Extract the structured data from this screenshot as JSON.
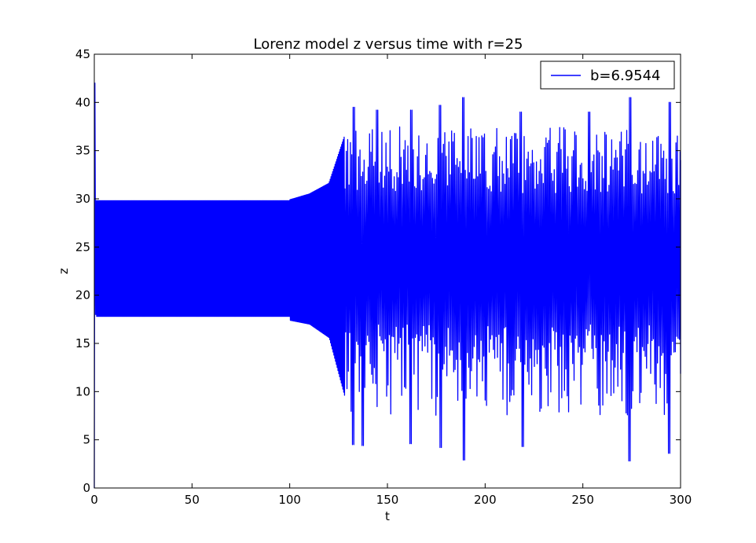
{
  "chart_data": {
    "type": "line",
    "title": "Lorenz model z versus time with r=25",
    "xlabel": "t",
    "ylabel": "z",
    "xlim": [
      0,
      300
    ],
    "ylim": [
      0,
      45
    ],
    "xticks": [
      0,
      50,
      100,
      150,
      200,
      250,
      300
    ],
    "yticks": [
      0,
      5,
      10,
      15,
      20,
      25,
      30,
      35,
      40,
      45
    ],
    "grid": false,
    "legend": {
      "position": "top-right",
      "entries": [
        "b=6.9544"
      ]
    },
    "series": [
      {
        "name": "b=6.9544",
        "color": "#0000ff",
        "description_points": {
          "transient": [
            [
              0,
              0
            ],
            [
              0.3,
              42
            ],
            [
              0.7,
              18
            ]
          ],
          "regular_band": {
            "t_range": [
              1,
              125
            ],
            "z_min": 17.8,
            "z_max": 29.8
          },
          "envelope_growth": [
            [
              100,
              29.9,
              17.4
            ],
            [
              110,
              30.5,
              17.0
            ],
            [
              120,
              31.6,
              15.6
            ],
            [
              128,
              36.5,
              9.5
            ]
          ],
          "chaotic_peaks": [
            [
              132.5,
              39.5
            ],
            [
              145,
              39.2
            ],
            [
              162,
              39.2
            ],
            [
              177,
              39.7
            ],
            [
              189,
              40.5
            ],
            [
              218,
              39
            ],
            [
              253,
              39
            ],
            [
              274,
              40.5
            ],
            [
              294.5,
              40
            ]
          ],
          "chaotic_troughs": [
            [
              132.5,
              4.5
            ],
            [
              137,
              4.4
            ],
            [
              162,
              4.6
            ],
            [
              177,
              4.2
            ],
            [
              189,
              2.9
            ],
            [
              219,
              4.3
            ],
            [
              274,
              2.8
            ],
            [
              294,
              3.6
            ]
          ],
          "chaotic_band": {
            "typical_max": 37.5,
            "typical_min": 7.5
          }
        }
      }
    ]
  }
}
